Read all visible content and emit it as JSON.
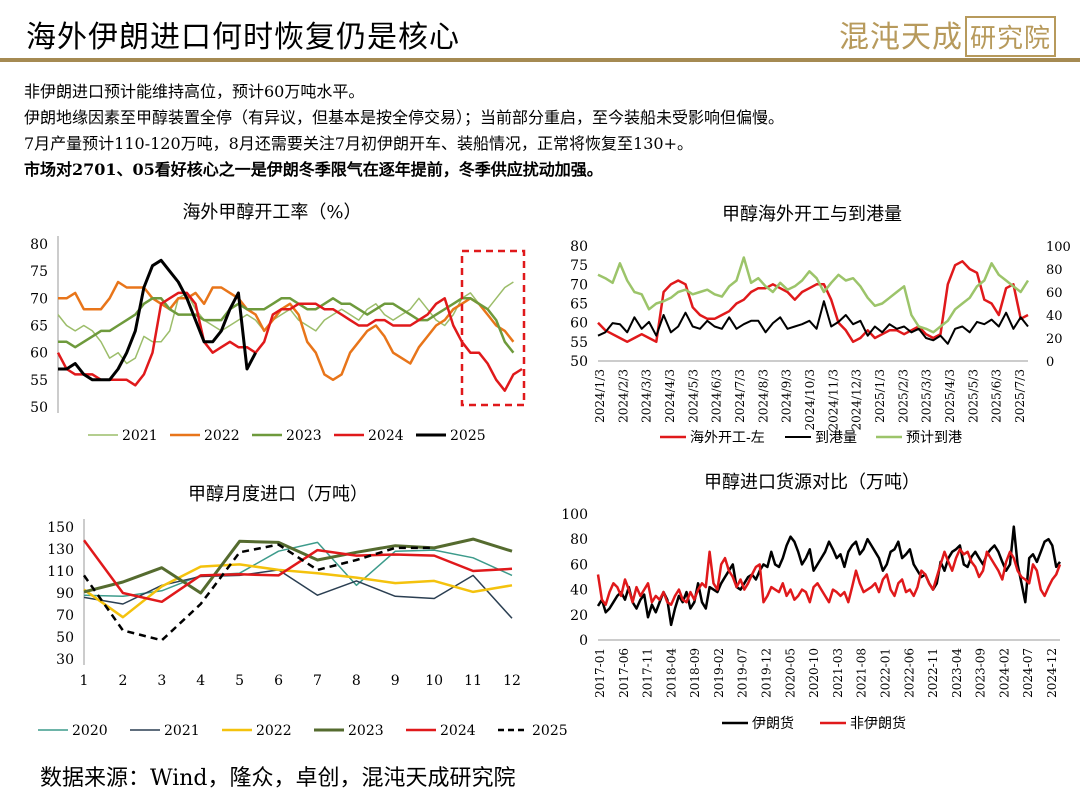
{
  "header": {
    "title": "海外伊朗进口何时恢复仍是核心",
    "logo_text": "混沌天成",
    "logo_box": "研究院"
  },
  "paragraphs": [
    "非伊朗进口预计能维持高位，预计60万吨水平。",
    "伊朗地缘因素至甲醇装置全停（有异议，但基本是按全停交易）；当前部分重启，至今装船未受影响但偏慢。",
    "7月产量预计110-120万吨，8月还需要关注7月初伊朗开车、装船情况，正常将恢复至130+。",
    "市场对2701、05看好核心之一是伊朗冬季限气在逐年提前，冬季供应扰动加强。"
  ],
  "footer": {
    "source": "数据来源：Wind，隆众，卓创，混沌天成研究院"
  },
  "chart_data": [
    {
      "id": "c1",
      "type": "line",
      "title": "海外甲醇开工率（%）",
      "ylim": [
        50,
        80
      ],
      "yticks": [
        "50",
        "55",
        "60",
        "65",
        "70",
        "75",
        "80"
      ],
      "highlight_box": true,
      "series": [
        {
          "name": "2021",
          "color": "#9cbd6a",
          "width": 1.5,
          "values": [
            67,
            65,
            64,
            65,
            64,
            62,
            59,
            60,
            58,
            59,
            63,
            62,
            62,
            64,
            70,
            71,
            68,
            66,
            65,
            64,
            65,
            66,
            67,
            66,
            64,
            66,
            67,
            68,
            66,
            65,
            64,
            66,
            67,
            68,
            67,
            66,
            68,
            69,
            67,
            66,
            67,
            68,
            70,
            68,
            66,
            65,
            67,
            70,
            71,
            69,
            68,
            70,
            72,
            73
          ]
        },
        {
          "name": "2022",
          "color": "#e8751a",
          "width": 2.5,
          "values": [
            70,
            70,
            71,
            68,
            68,
            68,
            70,
            73,
            72,
            72,
            72,
            70,
            69,
            68,
            70,
            70,
            71,
            69,
            72,
            72,
            71,
            70,
            68,
            67,
            64,
            66,
            68,
            69,
            67,
            62,
            60,
            56,
            55,
            56,
            60,
            62,
            64,
            65,
            63,
            60,
            59,
            58,
            61,
            63,
            65,
            66,
            68,
            69,
            70,
            69,
            67,
            65,
            64,
            62
          ]
        },
        {
          "name": "2023",
          "color": "#6e9a3c",
          "width": 2.5,
          "values": [
            62,
            62,
            61,
            62,
            63,
            64,
            64,
            65,
            66,
            67,
            69,
            70,
            70,
            68,
            67,
            67,
            67,
            66,
            66,
            66,
            68,
            69,
            68,
            68,
            68,
            69,
            70,
            70,
            69,
            68,
            68,
            69,
            70,
            69,
            69,
            68,
            67,
            68,
            69,
            69,
            68,
            67,
            66,
            66,
            67,
            68,
            69,
            70,
            70,
            69,
            68,
            66,
            62,
            60
          ]
        },
        {
          "name": "2024",
          "color": "#e0191b",
          "width": 2.5,
          "values": [
            60,
            57,
            56,
            56,
            56,
            55,
            55,
            55,
            55,
            54,
            56,
            60,
            69,
            70,
            71,
            71,
            69,
            62,
            60,
            61,
            62,
            61,
            61,
            60,
            62,
            67,
            68,
            68,
            69,
            69,
            69,
            68,
            68,
            67,
            66,
            65,
            65,
            66,
            66,
            65,
            65,
            65,
            66,
            67,
            69,
            70,
            65,
            62,
            60,
            60,
            58,
            55,
            53,
            56,
            57
          ]
        },
        {
          "name": "2025",
          "color": "#000000",
          "width": 3,
          "values": [
            57,
            57,
            58,
            56,
            55,
            55,
            55,
            57,
            60,
            64,
            72,
            76,
            77,
            75,
            73,
            70,
            66,
            62,
            62,
            64,
            68,
            71,
            57,
            60
          ]
        }
      ]
    },
    {
      "id": "c2",
      "type": "line",
      "title": "甲醇海外开工与到港量",
      "ylim": [
        50,
        80
      ],
      "y2lim": [
        0,
        100
      ],
      "yticks": [
        "50",
        "55",
        "60",
        "65",
        "70",
        "75",
        "80"
      ],
      "y2ticks": [
        "0",
        "20",
        "40",
        "60",
        "80",
        "100"
      ],
      "xticks": [
        "2024/1/3",
        "2024/2/3",
        "2024/3/3",
        "2024/4/3",
        "2024/5/3",
        "2024/6/3",
        "2024/7/3",
        "2024/8/3",
        "2024/9/3",
        "2024/10/3",
        "2024/11/3",
        "2024/12/3",
        "2025/1/3",
        "2025/2/3",
        "2025/3/3",
        "2025/4/3",
        "2025/5/3",
        "2025/6/3",
        "2025/7/3"
      ],
      "series": [
        {
          "name": "海外开工-左",
          "color": "#e0191b",
          "axis": "left",
          "width": 2.5,
          "values": [
            60,
            58,
            57,
            56,
            55,
            56,
            57,
            56,
            55,
            68,
            70,
            71,
            70,
            64,
            62,
            61,
            61,
            62,
            63,
            65,
            66,
            68,
            69,
            69,
            70,
            69,
            68,
            66,
            68,
            69,
            70,
            70,
            66,
            60,
            58,
            55,
            56,
            58,
            56,
            57,
            58,
            58,
            57,
            58,
            59,
            57,
            56,
            57,
            70,
            75,
            76,
            74,
            73,
            66,
            65,
            62,
            69,
            70,
            61,
            62
          ]
        },
        {
          "name": "到港量",
          "color": "#000000",
          "axis": "right",
          "width": 2,
          "values": [
            22,
            25,
            33,
            32,
            25,
            38,
            28,
            34,
            22,
            40,
            25,
            30,
            42,
            30,
            28,
            35,
            30,
            28,
            38,
            28,
            32,
            35,
            35,
            25,
            33,
            38,
            28,
            30,
            32,
            35,
            28,
            52,
            30,
            34,
            40,
            32,
            35,
            22,
            30,
            25,
            32,
            28,
            30,
            25,
            28,
            20,
            18,
            22,
            15,
            28,
            30,
            25,
            34,
            32,
            36,
            30,
            42,
            28,
            38,
            30
          ]
        },
        {
          "name": "预计到港",
          "color": "#9cc46a",
          "width": 2.5,
          "axis": "right",
          "values": [
            75,
            72,
            68,
            85,
            70,
            60,
            58,
            45,
            50,
            52,
            55,
            60,
            62,
            58,
            60,
            62,
            58,
            56,
            65,
            70,
            90,
            68,
            72,
            65,
            60,
            68,
            62,
            65,
            70,
            78,
            72,
            60,
            68,
            75,
            70,
            72,
            65,
            55,
            48,
            50,
            55,
            60,
            65,
            40,
            30,
            28,
            25,
            30,
            35,
            45,
            50,
            55,
            65,
            70,
            85,
            75,
            70,
            65,
            60,
            70
          ]
        }
      ]
    },
    {
      "id": "c3",
      "type": "line",
      "title": "甲醇月度进口（万吨）",
      "categories": [
        "1",
        "2",
        "3",
        "4",
        "5",
        "6",
        "7",
        "8",
        "9",
        "10",
        "11",
        "12"
      ],
      "ylim": [
        30,
        150
      ],
      "yticks": [
        "30",
        "50",
        "70",
        "90",
        "110",
        "130",
        "150"
      ],
      "series": [
        {
          "name": "2020",
          "color": "#3d9b8b",
          "width": 1.5,
          "values": [
            88,
            87,
            92,
            106,
            108,
            128,
            136,
            97,
            128,
            129,
            122,
            106
          ]
        },
        {
          "name": "2021",
          "color": "#2b3f52",
          "width": 1.5,
          "values": [
            86,
            80,
            97,
            105,
            106,
            111,
            88,
            101,
            87,
            85,
            106,
            67
          ]
        },
        {
          "name": "2022",
          "color": "#f4c20d",
          "width": 2.5,
          "values": [
            93,
            68,
            96,
            114,
            116,
            111,
            108,
            104,
            99,
            101,
            91,
            97
          ]
        },
        {
          "name": "2023",
          "color": "#556b2f",
          "width": 3,
          "values": [
            91,
            100,
            113,
            90,
            137,
            136,
            120,
            127,
            133,
            131,
            139,
            128
          ]
        },
        {
          "name": "2024",
          "color": "#e0191b",
          "width": 2.5,
          "values": [
            138,
            90,
            82,
            106,
            107,
            106,
            129,
            124,
            125,
            124,
            110,
            112
          ]
        },
        {
          "name": "2025",
          "color": "#000000",
          "width": 2.5,
          "dash": true,
          "values": [
            106,
            56,
            47,
            80,
            127,
            134,
            111,
            120,
            131,
            131,
            null,
            null
          ]
        }
      ]
    },
    {
      "id": "c4",
      "type": "line",
      "title": "甲醇进口货源对比（万吨）",
      "ylim": [
        0,
        100
      ],
      "yticks": [
        "0",
        "20",
        "40",
        "60",
        "80",
        "100"
      ],
      "xticks": [
        "2017-01",
        "2017-06",
        "2017-11",
        "2018-04",
        "2018-09",
        "2019-02",
        "2019-07",
        "2019-12",
        "2020-05",
        "2020-10",
        "2021-03",
        "2021-08",
        "2022-01",
        "2022-06",
        "2022-11",
        "2023-04",
        "2023-09",
        "2024-02",
        "2024-07",
        "2024-12"
      ],
      "series": [
        {
          "name": "伊朗货",
          "color": "#000000",
          "width": 2.5,
          "values": [
            27,
            32,
            22,
            25,
            30,
            35,
            38,
            32,
            42,
            30,
            25,
            32,
            36,
            18,
            28,
            22,
            30,
            38,
            32,
            12,
            25,
            35,
            30,
            38,
            25,
            30,
            45,
            30,
            25,
            42,
            40,
            38,
            45,
            50,
            55,
            60,
            42,
            40,
            45,
            50,
            52,
            48,
            55,
            60,
            58,
            70,
            60,
            58,
            65,
            75,
            82,
            78,
            70,
            60,
            65,
            72,
            55,
            60,
            65,
            70,
            78,
            72,
            65,
            68,
            58,
            70,
            75,
            78,
            68,
            72,
            80,
            75,
            70,
            65,
            55,
            60,
            70,
            72,
            78,
            65,
            68,
            72,
            60,
            55,
            50,
            52,
            45,
            40,
            45,
            62,
            55,
            65,
            70,
            72,
            75,
            60,
            58,
            66,
            70,
            65,
            60,
            68,
            72,
            75,
            70,
            62,
            55,
            60,
            90,
            60,
            45,
            30,
            65,
            68,
            62,
            70,
            78,
            80,
            75,
            58,
            62
          ]
        },
        {
          "name": "非伊朗货",
          "color": "#e0191b",
          "width": 2.5,
          "values": [
            52,
            32,
            28,
            38,
            45,
            42,
            35,
            48,
            40,
            30,
            42,
            35,
            40,
            45,
            30,
            35,
            32,
            38,
            30,
            28,
            35,
            40,
            32,
            30,
            38,
            32,
            40,
            45,
            42,
            70,
            45,
            40,
            60,
            65,
            55,
            50,
            42,
            48,
            40,
            45,
            52,
            58,
            60,
            30,
            35,
            42,
            40,
            38,
            45,
            35,
            40,
            32,
            35,
            40,
            38,
            30,
            42,
            45,
            40,
            35,
            30,
            40,
            38,
            35,
            38,
            30,
            42,
            55,
            45,
            38,
            40,
            42,
            45,
            38,
            48,
            52,
            40,
            35,
            45,
            48,
            38,
            40,
            35,
            42,
            55,
            52,
            45,
            40,
            50,
            60,
            70,
            62,
            55,
            65,
            72,
            68,
            70,
            62,
            58,
            50,
            55,
            70,
            65,
            60,
            55,
            48,
            62,
            70,
            65,
            55,
            50,
            48,
            45,
            60,
            55,
            40,
            35,
            42,
            48,
            52,
            60
          ]
        }
      ]
    }
  ]
}
